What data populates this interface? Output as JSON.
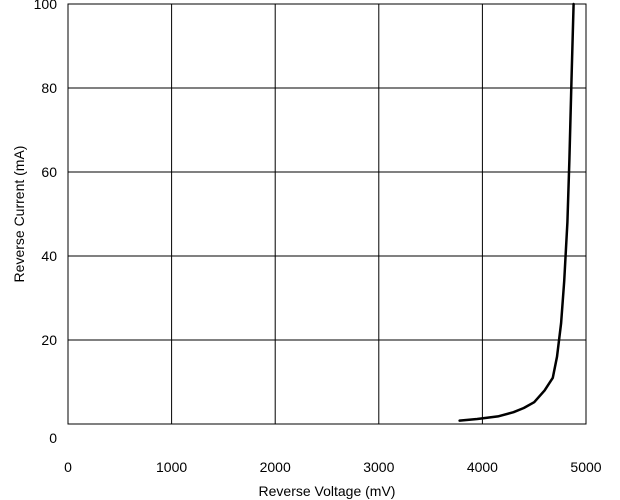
{
  "chart_data": {
    "type": "line",
    "title": "",
    "xlabel": "Reverse Voltage (mV)",
    "ylabel": "Reverse Current (mA)",
    "xlim": [
      0,
      5000
    ],
    "ylim": [
      0,
      100
    ],
    "x_ticks": [
      0,
      1000,
      2000,
      3000,
      4000,
      5000
    ],
    "y_ticks": [
      0,
      20,
      40,
      60,
      80,
      100
    ],
    "x_tick_labels": [
      "0",
      "1000",
      "2000",
      "3000",
      "4000",
      "5000"
    ],
    "y_tick_labels": [
      "0",
      "20",
      "40",
      "60",
      "80",
      "100"
    ],
    "grid": true,
    "series": [
      {
        "color": "#000000",
        "x": [
          3780,
          3950,
          4150,
          4300,
          4400,
          4500,
          4600,
          4680,
          4720,
          4760,
          4790,
          4820,
          4840,
          4860,
          4880
        ],
        "y": [
          0.8,
          1.2,
          1.8,
          2.8,
          3.8,
          5.2,
          8.0,
          11.0,
          16.0,
          24.0,
          34.0,
          48.0,
          63.0,
          82.0,
          100.0
        ]
      }
    ]
  }
}
